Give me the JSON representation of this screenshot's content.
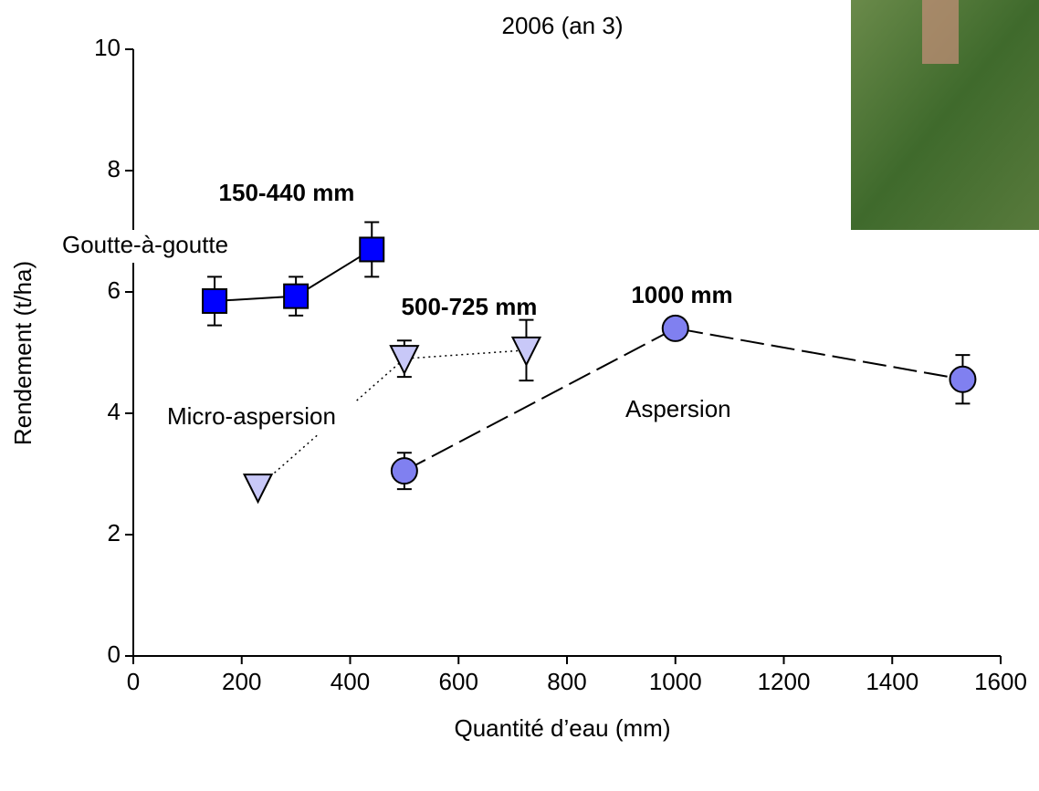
{
  "chart_data": {
    "type": "line",
    "title": "2006 (an 3)",
    "x_label": "Quantité d’eau (mm)",
    "y_label": "Rendement (t/ha)",
    "xlim": [
      0,
      1600
    ],
    "xticks": [
      0,
      200,
      400,
      600,
      800,
      1000,
      1200,
      1400,
      1600
    ],
    "ylim": [
      0,
      10
    ],
    "yticks": [
      0,
      2,
      4,
      6,
      8,
      10
    ],
    "series": [
      {
        "name": "Goutte-à-goutte",
        "color": "#0000ff",
        "marker": "square",
        "line_style": "solid",
        "x": [
          150,
          300,
          440
        ],
        "values": [
          5.85,
          5.93,
          6.7
        ],
        "errors": [
          0.4,
          0.32,
          0.45
        ]
      },
      {
        "name": "Micro-aspersion",
        "color": "#c8c8f8",
        "marker": "triangle-down",
        "line_style": "dotted",
        "x": [
          230,
          500,
          725
        ],
        "values": [
          2.78,
          4.9,
          5.04
        ],
        "errors": [
          null,
          0.3,
          0.5
        ]
      },
      {
        "name": "Aspersion",
        "color": "#8080f0",
        "marker": "circle",
        "line_style": "dashed",
        "x": [
          500,
          1000,
          1530
        ],
        "values": [
          3.05,
          5.4,
          4.56
        ],
        "errors": [
          0.3,
          null,
          0.4
        ]
      }
    ],
    "annotations": [
      {
        "text": "150-440 mm",
        "color": "#0000cc"
      },
      {
        "text": "500-725 mm",
        "color": "#ff9900"
      },
      {
        "text": "1000 mm",
        "color": "#ff0000"
      }
    ]
  }
}
